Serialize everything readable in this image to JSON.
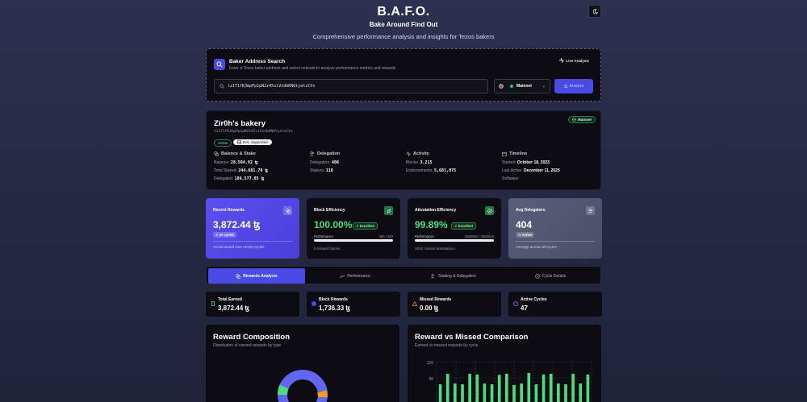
{
  "header": {
    "title": "B.A.F.O.",
    "subtitle": "Bake Around Find Out",
    "tagline": "Comprehensive performance analysis and insights for Tezos bakers"
  },
  "search": {
    "title": "Baker Address Search",
    "description": "Enter a Tezos baker address and select network to analyze performance metrics and rewards",
    "live_label": "Live Analysis",
    "address_value": "tz1T1fK3mpPp1pN2z45siVxdbKNQtyatzCVx",
    "network": "Mainnet",
    "analyze_label": "Analyze"
  },
  "baker": {
    "name": "Zir0h's bakery",
    "address": "tz1T1fK3mpPp1pN2z45siVxdbKNQtyatzCVx",
    "network_badge": "Mainnet",
    "status": "Active",
    "dal": "DAL Supported",
    "balance_head": "Balance & Stake",
    "balance_label": "Balance:",
    "balance": "28,504.92 ꜩ",
    "staked_label": "Total Staked:",
    "staked": "244,681.70 ꜩ",
    "delegated_label": "Delegated:",
    "delegated": "186,577.05 ꜩ",
    "delegation_head": "Delegation",
    "delegators_label": "Delegators:",
    "delegators": "406",
    "stakers_label": "Stakers:",
    "stakers": "118",
    "activity_head": "Activity",
    "blocks_label": "Blocks:",
    "blocks": "3,215",
    "endorse_label": "Endorsements:",
    "endorsements": "5,681,075",
    "timeline_head": "Timeline",
    "started_label": "Started:",
    "started": "October 18, 2023",
    "last_label": "Last Active:",
    "last_active": "December 11, 2025",
    "software_label": "Software:"
  },
  "cards": {
    "rewards": {
      "title": "Recent Rewards",
      "value": "3,872.44 ꜩ",
      "pill": "47 cycles",
      "foot": "Accumulated over recent cycles"
    },
    "block": {
      "title": "Block Efficiency",
      "value": "100.00%",
      "pill": "Excellent",
      "perf_label": "Performance",
      "perf_value": "383 / 383",
      "fill": 1.0,
      "foot": "0 missed blocks"
    },
    "attest": {
      "title": "Attestation Efficiency",
      "value": "99.89%",
      "pill": "Excellent",
      "perf_label": "Performance",
      "perf_value": "2660992 / 2663924",
      "fill": 0.9989,
      "foot": "2932 missed attestations"
    },
    "delegators": {
      "title": "Avg Delegators",
      "value": "404",
      "pill": "Active",
      "foot": "Average across all cycles"
    }
  },
  "tabs": [
    "Rewards Analysis",
    "Performance",
    "Staking & Delegation",
    "Cycle Details"
  ],
  "stats": [
    {
      "label": "Total Earned",
      "value": "3,872.44 ꜩ",
      "color": "#38c172"
    },
    {
      "label": "Block Rewards",
      "value": "1,736.33 ꜩ",
      "color": "#4a4ae6"
    },
    {
      "label": "Missed Rewards",
      "value": "0.00 ꜩ",
      "color": "#f59e0b"
    },
    {
      "label": "Active Cycles",
      "value": "47",
      "color": "#8b5cf6"
    }
  ],
  "composition": {
    "title": "Reward Composition",
    "subtitle": "Distribution of earned rewards by type"
  },
  "comparison": {
    "title": "Reward vs Missed Comparison",
    "subtitle": "Earned vs missed rewards by cycle",
    "ytick_top": "120",
    "ytick_2": "90"
  },
  "chart_data": {
    "type": "bar",
    "ylim": [
      0,
      120
    ],
    "series": [
      {
        "values": [
          60,
          88,
          62,
          60,
          88,
          86,
          62,
          60,
          85,
          88,
          58,
          62,
          90,
          60,
          86,
          88,
          62,
          60,
          88,
          62,
          86
        ]
      }
    ]
  }
}
